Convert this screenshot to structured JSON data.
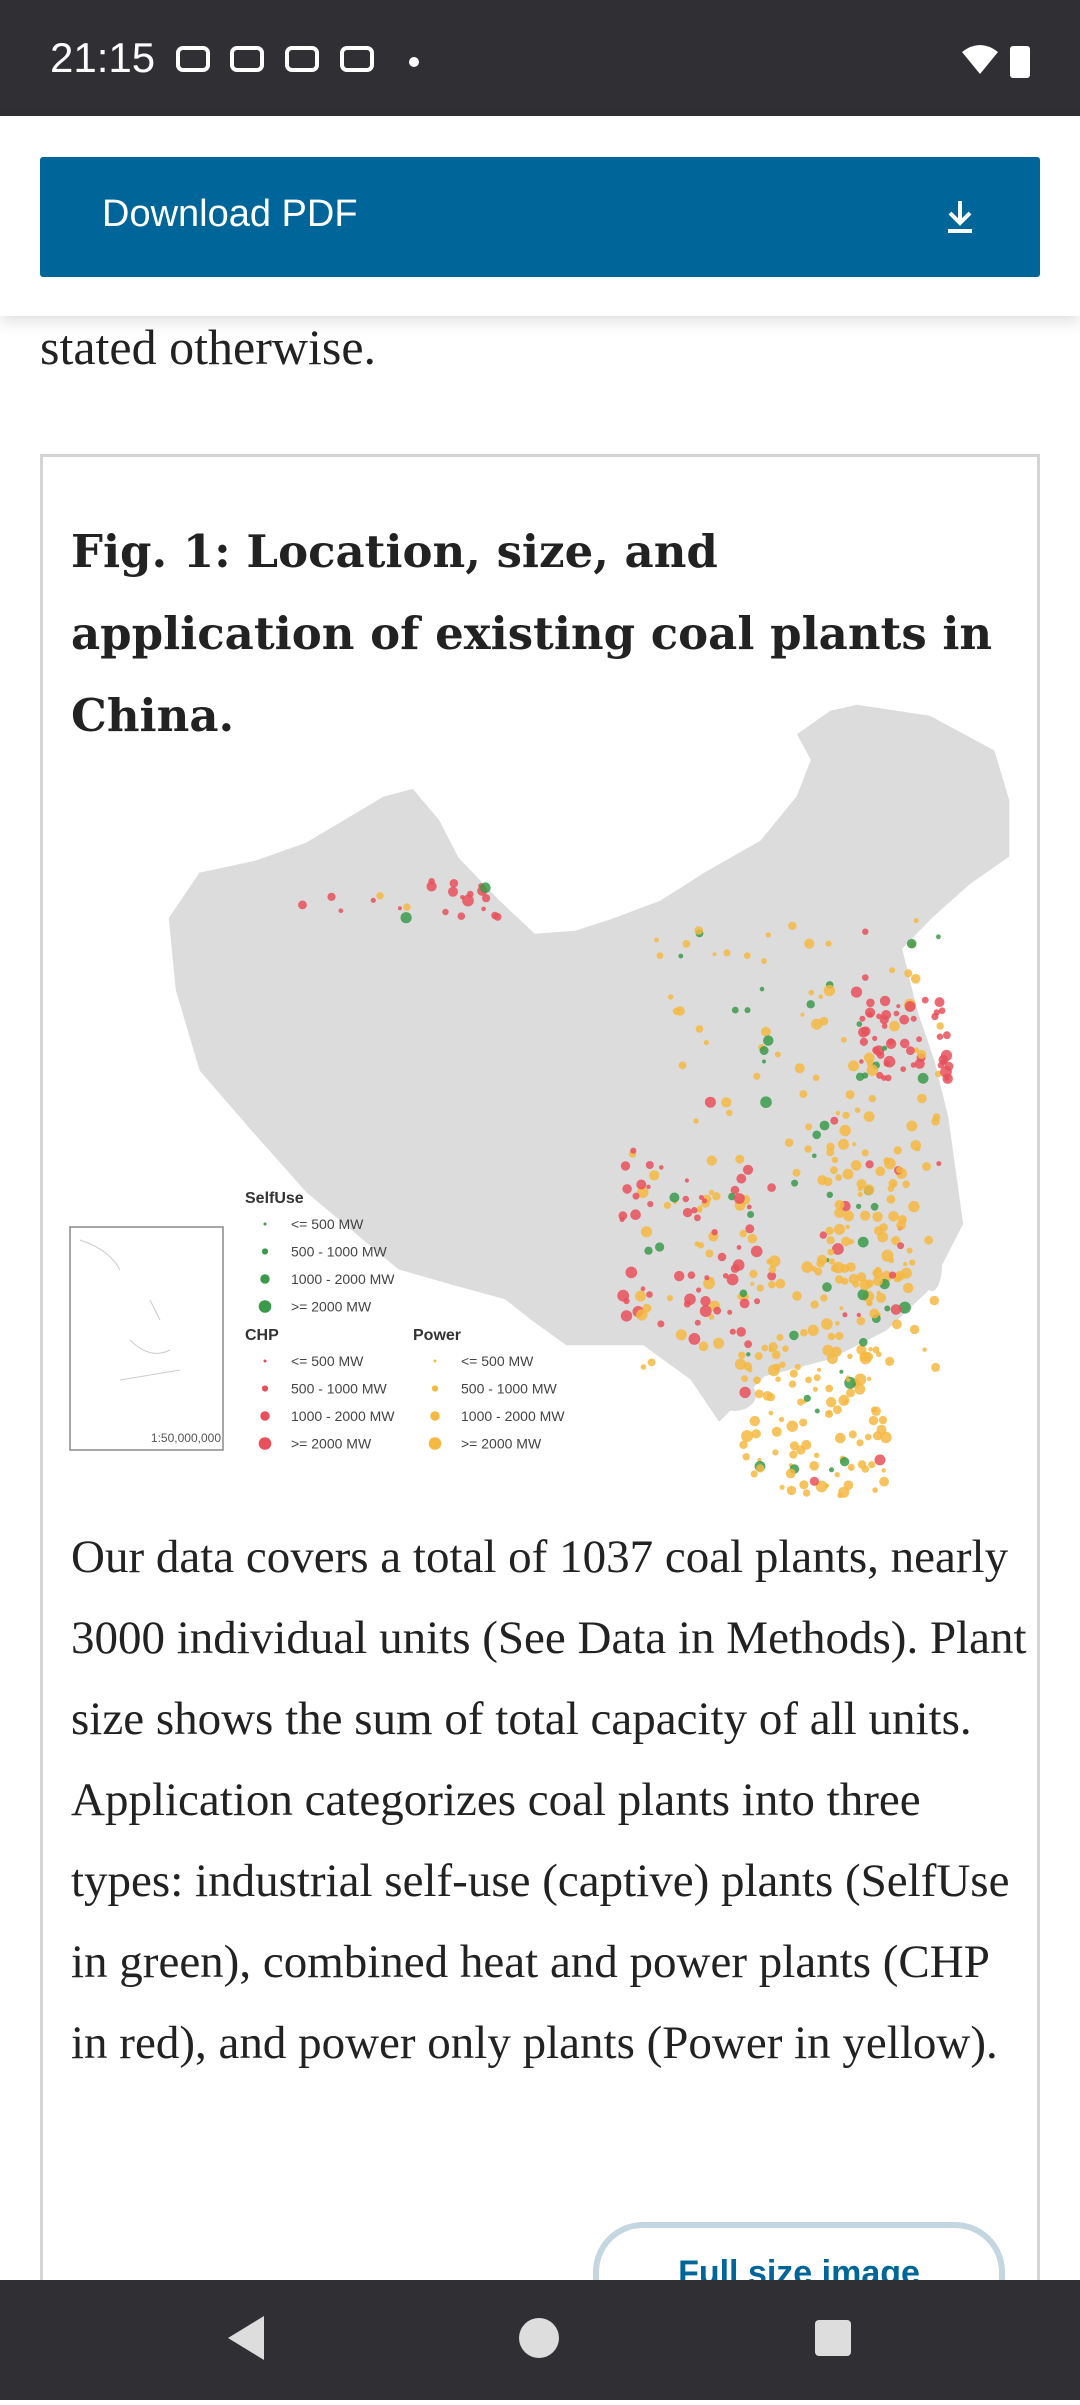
{
  "status_bar": {
    "time": "21:15"
  },
  "toolbar": {
    "button": "Download PDF"
  },
  "article": {
    "preceding_text": "stated otherwise.",
    "figure": {
      "title": "Fig. 1: Location, size, and application of existing coal plants in China.",
      "legend": [
        {
          "name": "SelfUse",
          "items": [
            "<= 500 MW",
            "500 - 1000 MW",
            "1000 - 2000 MW",
            ">= 2000 MW"
          ]
        },
        {
          "name": "CHP",
          "items": [
            "<= 500 MW",
            "500 - 1000 MW",
            "1000 - 2000 MW",
            ">= 2000 MW"
          ]
        },
        {
          "name": "Power",
          "items": [
            "<= 500 MW",
            "500 - 1000 MW",
            "1000 - 2000 MW",
            ">= 2000 MW"
          ]
        }
      ],
      "scale": "1:50,000,000",
      "caption": "Our data covers a total of 1037 coal plants, nearly 3000 individual units (See Data in Methods). Plant size shows the sum of total capacity of all units. Application categorizes coal plants into three types: industrial self-use (captive) plants (SelfUse in green), combined heat and power plants (CHP in red), and power only plants (Power in yellow).",
      "link": "Full size image"
    }
  }
}
